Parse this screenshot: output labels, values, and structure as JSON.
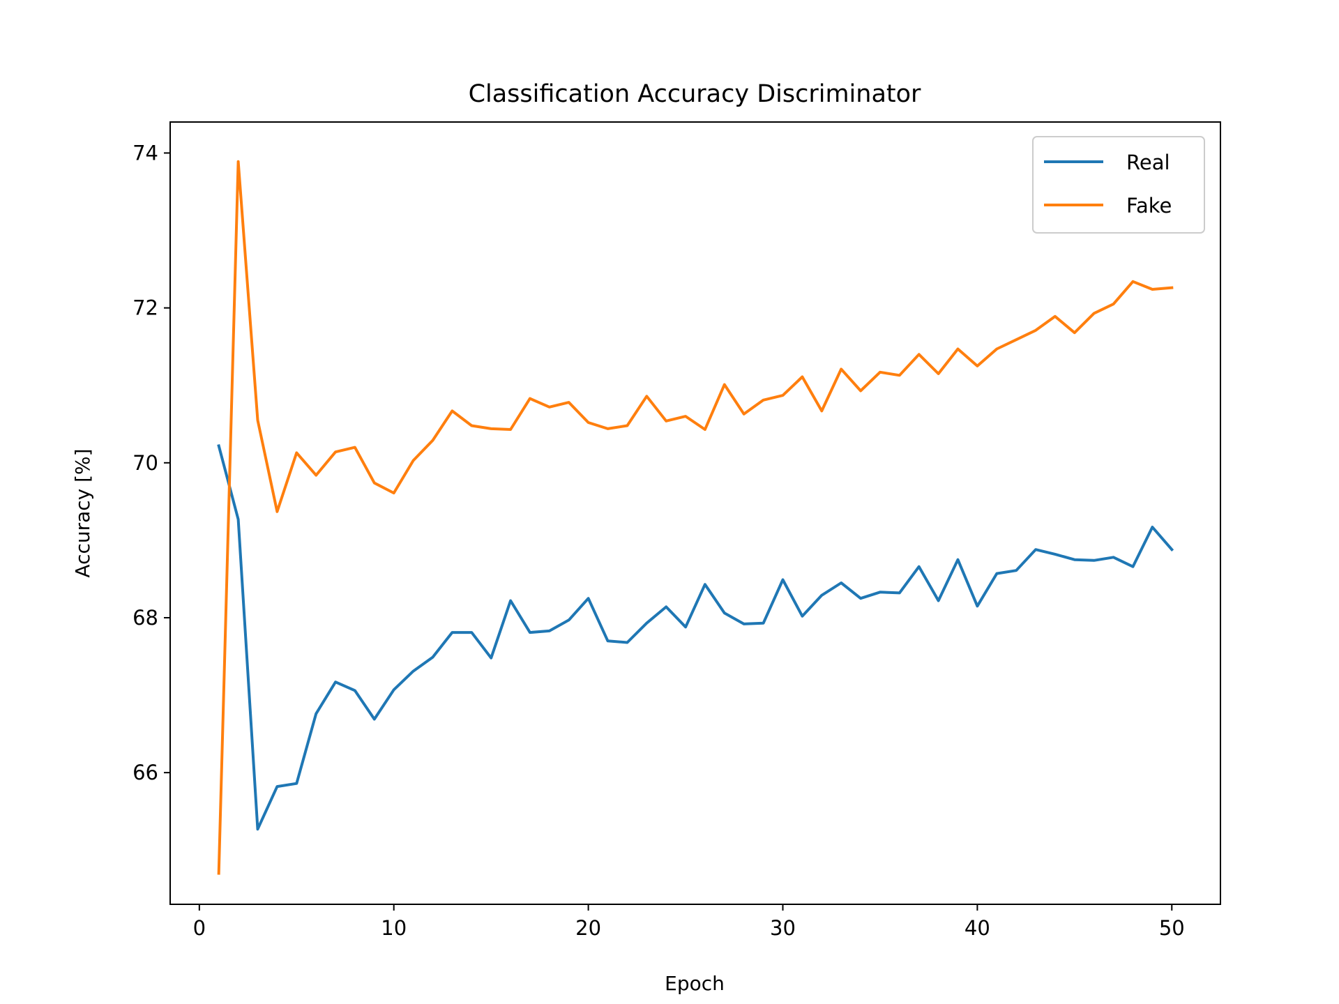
{
  "chart_data": {
    "type": "line",
    "title": "Classification Accuracy Discriminator",
    "xlabel": "Epoch",
    "ylabel": "Accuracy [%]",
    "xlim": [
      -1.5,
      52.5
    ],
    "ylim": [
      64.3,
      74.4
    ],
    "xticks": [
      0,
      10,
      20,
      30,
      40,
      50
    ],
    "yticks": [
      66,
      68,
      70,
      72,
      74
    ],
    "grid": false,
    "legend_position": "top-right",
    "series": [
      {
        "name": "Real",
        "color": "#1f77b4",
        "x": [
          1,
          2,
          3,
          4,
          5,
          6,
          7,
          8,
          9,
          10,
          11,
          12,
          13,
          14,
          15,
          16,
          17,
          18,
          19,
          20,
          21,
          22,
          23,
          24,
          25,
          26,
          27,
          28,
          29,
          30,
          31,
          32,
          33,
          34,
          35,
          36,
          37,
          38,
          39,
          40,
          41,
          42,
          43,
          44,
          45,
          46,
          47,
          48,
          49,
          50
        ],
        "values": [
          70.22,
          69.27,
          65.27,
          65.82,
          65.86,
          66.76,
          67.17,
          67.06,
          66.69,
          67.07,
          67.31,
          67.49,
          67.81,
          67.81,
          67.48,
          68.22,
          67.81,
          67.83,
          67.97,
          68.25,
          67.7,
          67.68,
          67.93,
          68.14,
          67.88,
          68.43,
          68.06,
          67.92,
          67.93,
          68.49,
          68.02,
          68.29,
          68.45,
          68.25,
          68.33,
          68.32,
          68.66,
          68.22,
          68.75,
          68.15,
          68.57,
          68.61,
          68.88,
          68.82,
          68.75,
          68.74,
          68.78,
          68.66,
          69.17,
          68.88
        ]
      },
      {
        "name": "Fake",
        "color": "#ff7f0e",
        "x": [
          1,
          2,
          3,
          4,
          5,
          6,
          7,
          8,
          9,
          10,
          11,
          12,
          13,
          14,
          15,
          16,
          17,
          18,
          19,
          20,
          21,
          22,
          23,
          24,
          25,
          26,
          27,
          28,
          29,
          30,
          31,
          32,
          33,
          34,
          35,
          36,
          37,
          38,
          39,
          40,
          41,
          42,
          43,
          44,
          45,
          46,
          47,
          48,
          49,
          50
        ],
        "values": [
          64.7,
          73.89,
          70.55,
          69.37,
          70.13,
          69.84,
          70.14,
          70.2,
          69.74,
          69.61,
          70.03,
          70.29,
          70.67,
          70.48,
          70.44,
          70.43,
          70.83,
          70.72,
          70.78,
          70.52,
          70.44,
          70.48,
          70.86,
          70.54,
          70.6,
          70.43,
          71.01,
          70.63,
          70.81,
          70.87,
          71.11,
          70.67,
          71.21,
          70.93,
          71.17,
          71.13,
          71.4,
          71.15,
          71.47,
          71.25,
          71.47,
          71.59,
          71.71,
          71.89,
          71.68,
          71.93,
          72.05,
          72.34,
          72.24,
          72.26
        ]
      }
    ]
  }
}
